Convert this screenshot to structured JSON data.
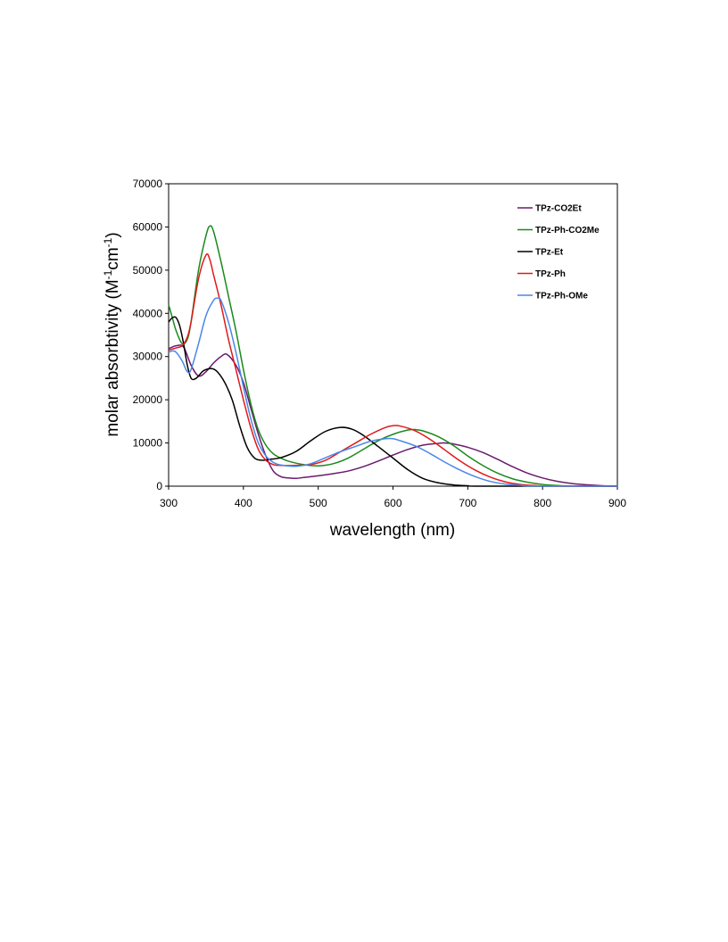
{
  "chart_data": {
    "type": "line",
    "xlabel": "wavelength (nm)",
    "ylabel_parts": [
      "molar absorbtivity (M",
      "-1",
      "cm",
      "-1",
      ")"
    ],
    "xlim": [
      300,
      900
    ],
    "ylim": [
      0,
      70000
    ],
    "xticks": [
      300,
      400,
      500,
      600,
      700,
      800,
      900
    ],
    "yticks": [
      0,
      10000,
      20000,
      30000,
      40000,
      50000,
      60000,
      70000
    ],
    "grid": false,
    "legend_position": "top-right",
    "series": [
      {
        "name": "TPz-CO2Et",
        "color": "#6a1a6e",
        "points": [
          [
            300,
            31800
          ],
          [
            310,
            32500
          ],
          [
            320,
            32200
          ],
          [
            330,
            28000
          ],
          [
            340,
            25500
          ],
          [
            350,
            26500
          ],
          [
            360,
            28500
          ],
          [
            370,
            30000
          ],
          [
            378,
            30500
          ],
          [
            390,
            28000
          ],
          [
            400,
            24000
          ],
          [
            410,
            18000
          ],
          [
            420,
            12000
          ],
          [
            430,
            7000
          ],
          [
            440,
            3500
          ],
          [
            450,
            2200
          ],
          [
            460,
            1900
          ],
          [
            470,
            1800
          ],
          [
            480,
            2000
          ],
          [
            500,
            2400
          ],
          [
            520,
            2900
          ],
          [
            540,
            3500
          ],
          [
            560,
            4500
          ],
          [
            580,
            5800
          ],
          [
            600,
            7200
          ],
          [
            620,
            8500
          ],
          [
            640,
            9500
          ],
          [
            660,
            9900
          ],
          [
            670,
            10000
          ],
          [
            680,
            9800
          ],
          [
            700,
            9000
          ],
          [
            720,
            7800
          ],
          [
            740,
            6200
          ],
          [
            760,
            4500
          ],
          [
            780,
            3000
          ],
          [
            800,
            1900
          ],
          [
            820,
            1100
          ],
          [
            840,
            600
          ],
          [
            860,
            300
          ],
          [
            880,
            100
          ],
          [
            900,
            0
          ]
        ]
      },
      {
        "name": "TPz-Ph-CO2Me",
        "color": "#1a8a1a",
        "points": [
          [
            300,
            42000
          ],
          [
            305,
            39000
          ],
          [
            310,
            36000
          ],
          [
            318,
            33000
          ],
          [
            325,
            34000
          ],
          [
            330,
            38000
          ],
          [
            340,
            50000
          ],
          [
            350,
            58000
          ],
          [
            355,
            60200
          ],
          [
            360,
            59000
          ],
          [
            370,
            52000
          ],
          [
            380,
            44000
          ],
          [
            390,
            36000
          ],
          [
            400,
            27000
          ],
          [
            410,
            19000
          ],
          [
            420,
            13000
          ],
          [
            430,
            9500
          ],
          [
            440,
            7500
          ],
          [
            450,
            6500
          ],
          [
            460,
            5800
          ],
          [
            480,
            5000
          ],
          [
            500,
            4700
          ],
          [
            520,
            5200
          ],
          [
            540,
            6500
          ],
          [
            560,
            8500
          ],
          [
            580,
            10500
          ],
          [
            600,
            12000
          ],
          [
            620,
            13000
          ],
          [
            630,
            13100
          ],
          [
            640,
            12800
          ],
          [
            660,
            11500
          ],
          [
            680,
            9500
          ],
          [
            700,
            7000
          ],
          [
            720,
            4800
          ],
          [
            740,
            3000
          ],
          [
            760,
            1700
          ],
          [
            780,
            900
          ],
          [
            800,
            400
          ],
          [
            820,
            150
          ],
          [
            840,
            50
          ],
          [
            900,
            0
          ]
        ]
      },
      {
        "name": "TPz-Et",
        "color": "#000000",
        "points": [
          [
            300,
            38000
          ],
          [
            305,
            39000
          ],
          [
            310,
            39000
          ],
          [
            315,
            37000
          ],
          [
            320,
            33000
          ],
          [
            325,
            28000
          ],
          [
            330,
            25000
          ],
          [
            335,
            24800
          ],
          [
            340,
            25500
          ],
          [
            345,
            26500
          ],
          [
            350,
            27000
          ],
          [
            358,
            27200
          ],
          [
            365,
            26500
          ],
          [
            375,
            24000
          ],
          [
            385,
            20000
          ],
          [
            395,
            14000
          ],
          [
            405,
            9000
          ],
          [
            415,
            6500
          ],
          [
            425,
            6000
          ],
          [
            435,
            6200
          ],
          [
            450,
            6600
          ],
          [
            470,
            8000
          ],
          [
            490,
            10500
          ],
          [
            510,
            12700
          ],
          [
            530,
            13600
          ],
          [
            545,
            13200
          ],
          [
            560,
            11800
          ],
          [
            580,
            9200
          ],
          [
            600,
            6500
          ],
          [
            620,
            3800
          ],
          [
            640,
            1800
          ],
          [
            660,
            800
          ],
          [
            680,
            300
          ],
          [
            700,
            100
          ],
          [
            720,
            0
          ],
          [
            900,
            0
          ]
        ]
      },
      {
        "name": "TPz-Ph",
        "color": "#e01a1a",
        "points": [
          [
            300,
            31500
          ],
          [
            310,
            32000
          ],
          [
            318,
            32500
          ],
          [
            325,
            34500
          ],
          [
            330,
            38000
          ],
          [
            340,
            48000
          ],
          [
            350,
            53500
          ],
          [
            355,
            52500
          ],
          [
            360,
            49000
          ],
          [
            370,
            42000
          ],
          [
            380,
            34000
          ],
          [
            390,
            27000
          ],
          [
            400,
            20000
          ],
          [
            410,
            13500
          ],
          [
            420,
            8500
          ],
          [
            430,
            6000
          ],
          [
            440,
            5000
          ],
          [
            450,
            4800
          ],
          [
            470,
            4800
          ],
          [
            490,
            5000
          ],
          [
            510,
            6000
          ],
          [
            530,
            8000
          ],
          [
            550,
            10000
          ],
          [
            570,
            12000
          ],
          [
            590,
            13600
          ],
          [
            600,
            14000
          ],
          [
            610,
            13900
          ],
          [
            630,
            12800
          ],
          [
            650,
            10800
          ],
          [
            670,
            8300
          ],
          [
            690,
            5800
          ],
          [
            710,
            3700
          ],
          [
            730,
            2100
          ],
          [
            750,
            1000
          ],
          [
            770,
            400
          ],
          [
            790,
            150
          ],
          [
            810,
            50
          ],
          [
            900,
            0
          ]
        ]
      },
      {
        "name": "TPz-Ph-OMe",
        "color": "#4a86e8",
        "points": [
          [
            300,
            31000
          ],
          [
            305,
            31300
          ],
          [
            310,
            31000
          ],
          [
            318,
            29000
          ],
          [
            325,
            26500
          ],
          [
            330,
            27000
          ],
          [
            340,
            33000
          ],
          [
            350,
            39500
          ],
          [
            360,
            43000
          ],
          [
            365,
            43500
          ],
          [
            370,
            43000
          ],
          [
            380,
            38000
          ],
          [
            390,
            31000
          ],
          [
            400,
            23000
          ],
          [
            410,
            15500
          ],
          [
            420,
            10000
          ],
          [
            430,
            7000
          ],
          [
            440,
            5500
          ],
          [
            450,
            4900
          ],
          [
            470,
            4600
          ],
          [
            490,
            5200
          ],
          [
            510,
            6600
          ],
          [
            530,
            8000
          ],
          [
            550,
            9200
          ],
          [
            570,
            10400
          ],
          [
            590,
            11000
          ],
          [
            600,
            11000
          ],
          [
            610,
            10500
          ],
          [
            630,
            9300
          ],
          [
            650,
            7500
          ],
          [
            670,
            5500
          ],
          [
            690,
            3700
          ],
          [
            710,
            2200
          ],
          [
            730,
            1100
          ],
          [
            750,
            500
          ],
          [
            770,
            200
          ],
          [
            790,
            50
          ],
          [
            900,
            0
          ]
        ]
      }
    ]
  }
}
